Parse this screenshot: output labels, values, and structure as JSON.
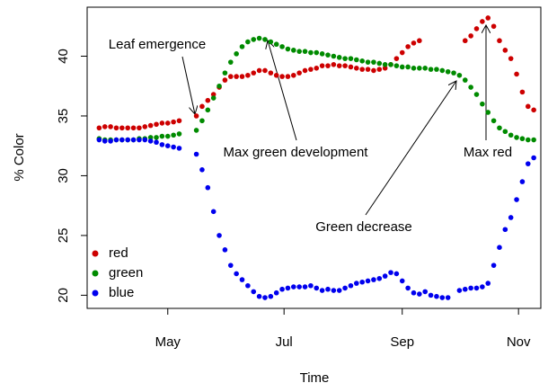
{
  "chart_data": {
    "type": "scatter",
    "x_label": "Time",
    "y_label": "% Color",
    "annotations": [
      "Leaf emergence",
      "Max green development",
      "Green decrease",
      "Max red"
    ],
    "x": [
      85,
      88,
      91,
      94,
      97,
      100,
      103,
      106,
      109,
      112,
      115,
      118,
      121,
      124,
      127,
      130,
      133,
      136,
      139,
      142,
      145,
      148,
      151,
      154,
      157,
      160,
      163,
      166,
      169,
      172,
      175,
      178,
      181,
      184,
      187,
      190,
      193,
      196,
      199,
      202,
      205,
      208,
      211,
      214,
      217,
      220,
      223,
      226,
      229,
      232,
      235,
      238,
      241,
      244,
      247,
      250,
      253,
      256,
      259,
      262,
      265,
      268,
      271,
      274,
      277,
      280,
      283,
      286,
      289,
      292,
      295,
      298,
      301,
      304,
      307,
      310,
      313
    ],
    "series": [
      {
        "name": "red",
        "color": "#cd0000",
        "values": [
          34.0,
          34.1,
          34.1,
          34.0,
          34.0,
          34.0,
          34.0,
          34.0,
          34.1,
          34.2,
          34.3,
          34.4,
          34.4,
          34.5,
          34.6,
          null,
          null,
          35.0,
          35.8,
          36.3,
          36.8,
          37.4,
          38.0,
          38.3,
          38.3,
          38.3,
          38.4,
          38.6,
          38.8,
          38.8,
          38.6,
          38.4,
          38.3,
          38.3,
          38.4,
          38.6,
          38.8,
          38.9,
          39.0,
          39.2,
          39.2,
          39.3,
          39.2,
          39.2,
          39.1,
          39.0,
          38.9,
          38.9,
          38.8,
          38.9,
          39.0,
          39.3,
          39.8,
          40.3,
          40.8,
          41.1,
          41.3,
          null,
          null,
          null,
          null,
          null,
          null,
          null,
          41.3,
          41.7,
          42.3,
          42.9,
          43.2,
          42.5,
          41.3,
          40.5,
          39.8,
          38.5,
          37.0,
          35.8,
          35.5
        ]
      },
      {
        "name": "green",
        "color": "#008b00",
        "values": [
          33.1,
          33.0,
          33.0,
          33.0,
          33.0,
          33.0,
          33.0,
          33.1,
          33.1,
          33.2,
          33.2,
          33.3,
          33.3,
          33.4,
          33.5,
          null,
          null,
          33.8,
          34.6,
          35.5,
          36.5,
          37.5,
          38.6,
          39.5,
          40.2,
          40.8,
          41.2,
          41.4,
          41.5,
          41.4,
          41.2,
          41.0,
          40.8,
          40.6,
          40.5,
          40.4,
          40.4,
          40.3,
          40.3,
          40.2,
          40.1,
          40.0,
          39.9,
          39.8,
          39.8,
          39.7,
          39.6,
          39.5,
          39.5,
          39.4,
          39.3,
          39.3,
          39.2,
          39.1,
          39.1,
          39.0,
          39.0,
          39.0,
          38.9,
          38.9,
          38.8,
          38.7,
          38.6,
          38.4,
          38.0,
          37.4,
          36.8,
          36.0,
          35.3,
          34.6,
          34.0,
          33.7,
          33.4,
          33.2,
          33.1,
          33.0,
          33.0
        ]
      },
      {
        "name": "blue",
        "color": "#0000ee",
        "values": [
          33.0,
          32.9,
          32.9,
          33.0,
          33.0,
          33.0,
          33.0,
          33.0,
          33.0,
          32.9,
          32.8,
          32.6,
          32.5,
          32.4,
          32.3,
          null,
          null,
          31.8,
          30.5,
          29.0,
          27.0,
          25.0,
          23.8,
          22.5,
          21.8,
          21.3,
          20.8,
          20.3,
          19.9,
          19.8,
          19.9,
          20.2,
          20.5,
          20.6,
          20.7,
          20.7,
          20.7,
          20.8,
          20.6,
          20.4,
          20.5,
          20.4,
          20.4,
          20.6,
          20.8,
          21.0,
          21.1,
          21.2,
          21.3,
          21.4,
          21.6,
          21.9,
          21.8,
          21.2,
          20.6,
          20.2,
          20.1,
          20.3,
          20.0,
          19.9,
          19.8,
          19.8,
          null,
          20.4,
          20.5,
          20.6,
          20.6,
          20.7,
          21.0,
          22.5,
          24.0,
          25.5,
          26.5,
          28.0,
          29.5,
          31.0,
          31.5
        ]
      }
    ],
    "xlim": [
      78.7,
      316.7
    ],
    "xticks": [
      {
        "value": 121,
        "label": "May"
      },
      {
        "value": 182,
        "label": "Jul"
      },
      {
        "value": 244,
        "label": "Sep"
      },
      {
        "value": 305,
        "label": "Nov"
      }
    ],
    "ylim": [
      18.9,
      44.1
    ],
    "yticks": [
      20,
      25,
      30,
      35,
      40
    ],
    "grid": false,
    "legend": "bottom-left"
  }
}
